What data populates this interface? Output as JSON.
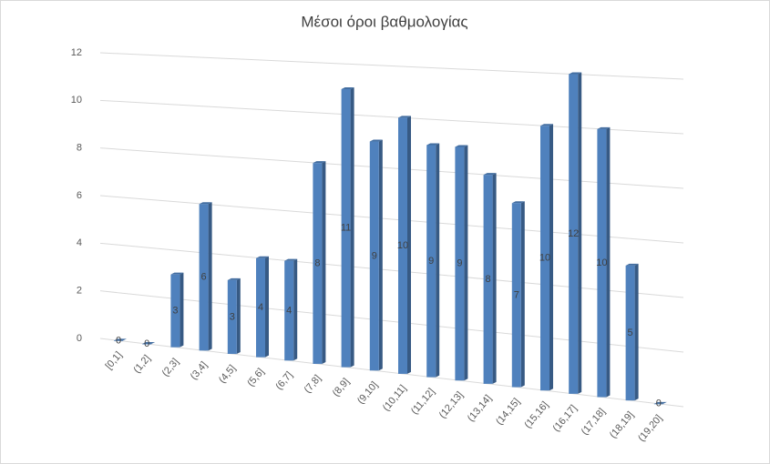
{
  "chart_data": {
    "type": "bar",
    "title": "Μέσοι όροι βαθμολογίας",
    "categories": [
      "[0,1]",
      "(1,2]",
      "(2,3]",
      "(3,4]",
      "(4,5]",
      "(5,6]",
      "(6,7]",
      "(7,8]",
      "(8,9]",
      "(9,10]",
      "(10,11]",
      "(11,12]",
      "(12,13]",
      "(13,14]",
      "(14,15]",
      "(15,16]",
      "(16,17]",
      "(17,18]",
      "(18,19]",
      "(19,20]"
    ],
    "values": [
      0,
      0,
      3,
      6,
      3,
      4,
      4,
      8,
      11,
      9,
      10,
      9,
      9,
      8,
      7,
      10,
      12,
      10,
      5,
      0
    ],
    "color": "#4f81bd",
    "ylim": [
      0,
      12
    ],
    "yticks": [
      0,
      2,
      4,
      6,
      8,
      10,
      12
    ],
    "grid": true
  }
}
